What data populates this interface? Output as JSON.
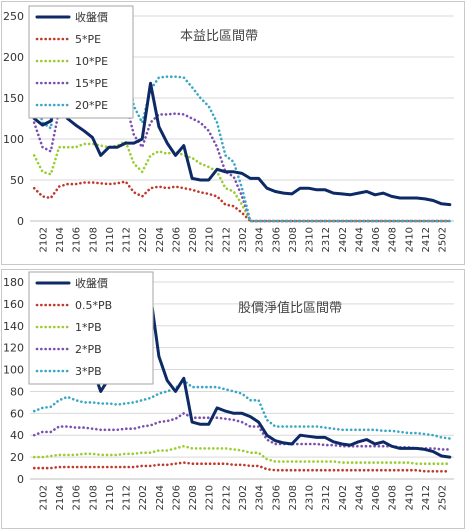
{
  "chart_data": [
    {
      "type": "line",
      "title": "本益比區間帶",
      "categories": [
        "2101",
        "2102",
        "2103",
        "2104",
        "2105",
        "2106",
        "2107",
        "2108",
        "2109",
        "2110",
        "2111",
        "2112",
        "2201",
        "2202",
        "2203",
        "2204",
        "2205",
        "2206",
        "2207",
        "2208",
        "2209",
        "2210",
        "2211",
        "2212",
        "2301",
        "2302",
        "2303",
        "2304",
        "2305",
        "2306",
        "2307",
        "2308",
        "2309",
        "2310",
        "2311",
        "2312",
        "2401",
        "2402",
        "2403",
        "2404",
        "2405",
        "2406",
        "2407",
        "2408",
        "2409",
        "2410",
        "2411",
        "2412",
        "2501",
        "2502",
        "2503"
      ],
      "tick_labels": [
        "2102",
        "2104",
        "2106",
        "2108",
        "2110",
        "2112",
        "2202",
        "2204",
        "2206",
        "2208",
        "2210",
        "2212",
        "2302",
        "2304",
        "2306",
        "2308",
        "2310",
        "2312",
        "2402",
        "2404",
        "2406",
        "2408",
        "2410",
        "2412",
        "2502"
      ],
      "ylim": [
        0,
        250
      ],
      "yticks": [
        0,
        50,
        100,
        150,
        200,
        250
      ],
      "grid": true,
      "legend_position": "top-left",
      "series": [
        {
          "name": "收盤價",
          "color": "#0d2a66",
          "style": "solid",
          "values": [
            125,
            117,
            122,
            150,
            125,
            117,
            110,
            102,
            80,
            90,
            90,
            95,
            95,
            100,
            168,
            115,
            95,
            80,
            92,
            52,
            50,
            50,
            63,
            60,
            60,
            58,
            52,
            52,
            40,
            36,
            34,
            33,
            40,
            40,
            38,
            38,
            34,
            33,
            32,
            34,
            36,
            32,
            34,
            30,
            28,
            28,
            28,
            27,
            25,
            21,
            20
          ]
        },
        {
          "name": "5*PE",
          "color": "#c0392b",
          "style": "dotted",
          "values": [
            40,
            30,
            28,
            42,
            45,
            45,
            47,
            47,
            46,
            45,
            46,
            48,
            35,
            30,
            40,
            42,
            40,
            42,
            40,
            38,
            35,
            33,
            30,
            20,
            18,
            10,
            0,
            0,
            0,
            0,
            0,
            0,
            0,
            0,
            0,
            0,
            0,
            0,
            0,
            0,
            0,
            0,
            0,
            0,
            0,
            0,
            0,
            0,
            0,
            0,
            0
          ]
        },
        {
          "name": "10*PE",
          "color": "#9acd32",
          "style": "dotted",
          "values": [
            80,
            60,
            57,
            90,
            90,
            90,
            94,
            94,
            92,
            90,
            92,
            97,
            70,
            60,
            80,
            85,
            82,
            85,
            80,
            77,
            70,
            66,
            60,
            40,
            36,
            20,
            0,
            0,
            0,
            0,
            0,
            0,
            0,
            0,
            0,
            0,
            0,
            0,
            0,
            0,
            0,
            0,
            0,
            0,
            0,
            0,
            0,
            0,
            0,
            0,
            0
          ]
        },
        {
          "name": "15*PE",
          "color": "#7b4fb0",
          "style": "dotted",
          "values": [
            120,
            90,
            85,
            135,
            135,
            135,
            140,
            141,
            138,
            135,
            138,
            145,
            105,
            90,
            120,
            130,
            130,
            131,
            130,
            125,
            120,
            110,
            90,
            60,
            54,
            30,
            0,
            0,
            0,
            0,
            0,
            0,
            0,
            0,
            0,
            0,
            0,
            0,
            0,
            0,
            0,
            0,
            0,
            0,
            0,
            0,
            0,
            0,
            0,
            0,
            0
          ]
        },
        {
          "name": "20*PE",
          "color": "#3aa7c5",
          "style": "dotted",
          "values": [
            160,
            120,
            113,
            180,
            180,
            180,
            188,
            188,
            184,
            180,
            184,
            193,
            140,
            120,
            160,
            175,
            176,
            176,
            175,
            163,
            150,
            140,
            120,
            80,
            72,
            40,
            0,
            0,
            0,
            0,
            0,
            0,
            0,
            0,
            0,
            0,
            0,
            0,
            0,
            0,
            0,
            0,
            0,
            0,
            0,
            0,
            0,
            0,
            0,
            0,
            0
          ]
        }
      ]
    },
    {
      "type": "line",
      "title": "股價淨值比區間帶",
      "categories": [
        "2101",
        "2102",
        "2103",
        "2104",
        "2105",
        "2106",
        "2107",
        "2108",
        "2109",
        "2110",
        "2111",
        "2112",
        "2201",
        "2202",
        "2203",
        "2204",
        "2205",
        "2206",
        "2207",
        "2208",
        "2209",
        "2210",
        "2211",
        "2212",
        "2301",
        "2302",
        "2303",
        "2304",
        "2305",
        "2306",
        "2307",
        "2308",
        "2309",
        "2310",
        "2311",
        "2312",
        "2401",
        "2402",
        "2403",
        "2404",
        "2405",
        "2406",
        "2407",
        "2408",
        "2409",
        "2410",
        "2411",
        "2412",
        "2501",
        "2502",
        "2503"
      ],
      "tick_labels": [
        "2102",
        "2104",
        "2106",
        "2108",
        "2110",
        "2112",
        "2202",
        "2204",
        "2206",
        "2208",
        "2210",
        "2212",
        "2302",
        "2304",
        "2306",
        "2308",
        "2310",
        "2312",
        "2402",
        "2404",
        "2406",
        "2408",
        "2410",
        "2412",
        "2502"
      ],
      "ylim": [
        0,
        180
      ],
      "yticks": [
        0,
        20,
        40,
        60,
        80,
        100,
        120,
        140,
        160,
        180
      ],
      "grid": true,
      "legend_position": "top-left",
      "series": [
        {
          "name": "收盤價",
          "color": "#0d2a66",
          "style": "solid",
          "values": [
            125,
            117,
            122,
            150,
            125,
            117,
            110,
            102,
            80,
            92,
            91,
            96,
            95,
            100,
            168,
            112,
            90,
            80,
            92,
            52,
            50,
            50,
            65,
            62,
            60,
            60,
            57,
            52,
            40,
            35,
            33,
            32,
            40,
            39,
            38,
            38,
            34,
            32,
            31,
            34,
            36,
            32,
            34,
            30,
            28,
            28,
            28,
            27,
            25,
            21,
            20
          ]
        },
        {
          "name": "0.5*PB",
          "color": "#c0392b",
          "style": "dotted",
          "values": [
            10,
            10,
            10,
            11,
            11,
            11,
            11,
            11,
            11,
            11,
            11,
            11,
            11,
            12,
            12,
            13,
            13,
            14,
            15,
            14,
            14,
            14,
            14,
            14,
            13,
            13,
            12,
            12,
            9,
            8,
            8,
            8,
            8,
            8,
            8,
            8,
            8,
            8,
            8,
            8,
            8,
            8,
            8,
            8,
            8,
            8,
            8,
            7,
            7,
            7,
            7
          ]
        },
        {
          "name": "1*PB",
          "color": "#9acd32",
          "style": "dotted",
          "values": [
            20,
            20,
            21,
            22,
            22,
            22,
            23,
            23,
            22,
            22,
            22,
            23,
            23,
            24,
            24,
            26,
            26,
            28,
            30,
            28,
            28,
            28,
            28,
            28,
            27,
            26,
            24,
            24,
            18,
            16,
            16,
            16,
            16,
            16,
            16,
            16,
            16,
            15,
            15,
            15,
            15,
            15,
            15,
            15,
            15,
            15,
            14,
            14,
            14,
            14,
            14
          ]
        },
        {
          "name": "2*PB",
          "color": "#7b4fb0",
          "style": "dotted",
          "values": [
            40,
            43,
            43,
            48,
            48,
            47,
            47,
            46,
            45,
            45,
            45,
            46,
            46,
            48,
            49,
            52,
            53,
            55,
            60,
            56,
            56,
            56,
            56,
            55,
            54,
            52,
            48,
            48,
            36,
            32,
            32,
            32,
            32,
            32,
            32,
            31,
            31,
            30,
            30,
            30,
            30,
            30,
            30,
            30,
            29,
            29,
            28,
            28,
            28,
            27,
            27
          ]
        },
        {
          "name": "3*PB",
          "color": "#3aa7c5",
          "style": "dotted",
          "values": [
            62,
            65,
            66,
            72,
            75,
            72,
            70,
            70,
            69,
            69,
            68,
            69,
            70,
            72,
            74,
            78,
            80,
            83,
            90,
            84,
            84,
            84,
            84,
            82,
            80,
            78,
            72,
            72,
            54,
            48,
            48,
            48,
            48,
            48,
            48,
            47,
            46,
            45,
            45,
            45,
            45,
            45,
            44,
            44,
            43,
            42,
            42,
            41,
            40,
            38,
            37
          ]
        }
      ]
    }
  ]
}
